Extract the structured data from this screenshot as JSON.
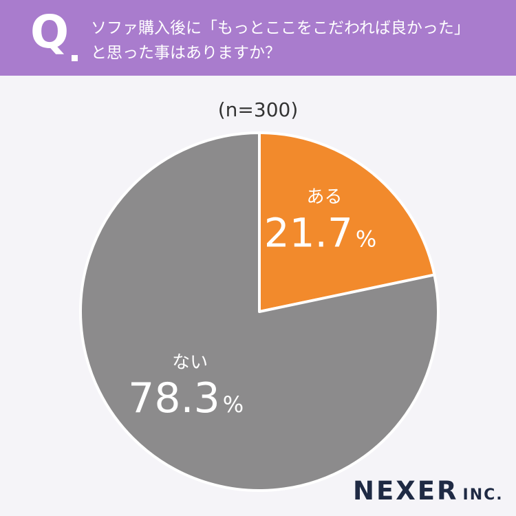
{
  "header": {
    "q_label": "Q",
    "question_line1": "ソファ購入後に「もっとここをこだわれば良かった」",
    "question_line2": "と思った事はありますか？"
  },
  "sample_size": "(n=300)",
  "brand": {
    "name": "NEXER",
    "suffix": "INC."
  },
  "colors": {
    "header_bg": "#a97ccd",
    "slice_aru": "#f28a2c",
    "slice_nai": "#8c8b8c"
  },
  "chart_data": {
    "type": "pie",
    "slices": [
      {
        "label": "ある",
        "value": 21.7,
        "value_text": "21.7",
        "unit": "%",
        "color": "#f28a2c"
      },
      {
        "label": "ない",
        "value": 78.3,
        "value_text": "78.3",
        "unit": "%",
        "color": "#8c8b8c"
      }
    ],
    "start_angle": "12 o'clock",
    "direction": "clockwise"
  }
}
